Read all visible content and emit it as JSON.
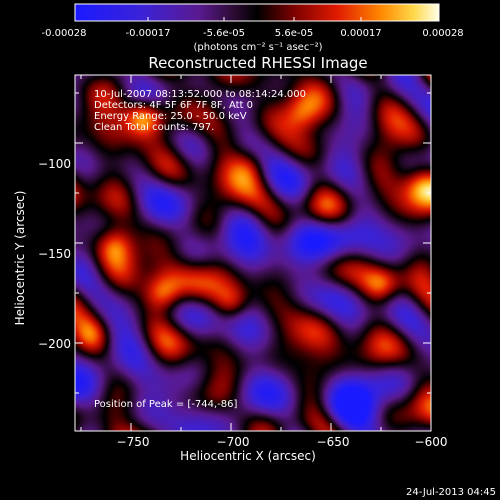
{
  "colorbar": {
    "tick_labels": [
      "-0.00028",
      "-0.00017",
      "-5.6e-05",
      "5.6e-05",
      "0.00017",
      "0.00028"
    ],
    "unit_label": "(photons cm⁻² s⁻¹ asec⁻²)",
    "range": [
      -0.00028,
      0.00028
    ]
  },
  "title": "Reconstructed RHESSI Image",
  "info": {
    "time_range": "10-Jul-2007 08:13:52.000 to 08:14:24.000",
    "detectors": "Detectors: 4F 5F 6F 7F 8F, Att 0",
    "energy_range": "Energy Range: 25.0 - 50.0 keV",
    "clean": "Clean     Total counts: 797.",
    "peak": "Position of Peak = [-744,-86]"
  },
  "footer_timestamp": "24-Jul-2013 04:45",
  "chart_data": {
    "type": "heatmap",
    "title": "Reconstructed RHESSI Image",
    "xlabel": "Heliocentric X (arcsec)",
    "ylabel": "Heliocentric Y (arcsec)",
    "xlim": [
      -778,
      -600
    ],
    "ylim": [
      -244,
      -66
    ],
    "x_ticks": [
      -750,
      -700,
      -650,
      -600
    ],
    "x_tick_labels": [
      "−750",
      "−700",
      "−650",
      "−600"
    ],
    "y_ticks": [
      -100,
      -150,
      -200
    ],
    "y_tick_labels": [
      "−100",
      "−150",
      "−200"
    ],
    "colormap": "rhessi-hot",
    "value_range": [
      -0.00028,
      0.00028
    ],
    "peak_position": [
      -744,
      -86
    ],
    "grid": false
  }
}
